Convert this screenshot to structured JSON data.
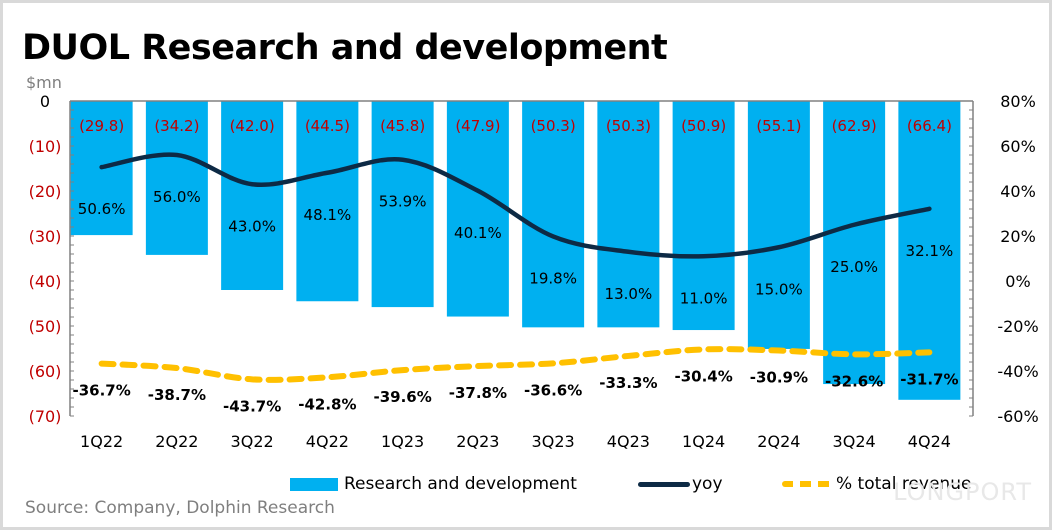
{
  "header": {
    "title": "DUOL Research and development",
    "unit": "$mn"
  },
  "legend": {
    "bar_label": "Research and development",
    "line_label": "yoy",
    "dash_label": "% total revenue"
  },
  "footer": {
    "source": "Source:  Company, Dolphin Research",
    "watermark": "LONGPORT"
  },
  "colors": {
    "bar": "#00b0f0",
    "yoy_line": "#0d2a45",
    "revenue_dash": "#ffc000",
    "bar_label": "#c00000",
    "left_axis_label": "#c00000"
  },
  "chart_data": {
    "type": "bar",
    "title": "DUOL Research and development",
    "xlabel": "",
    "ylabel": "$mn",
    "categories": [
      "1Q22",
      "2Q22",
      "3Q22",
      "4Q22",
      "1Q23",
      "2Q23",
      "3Q23",
      "4Q23",
      "1Q24",
      "2Q24",
      "3Q24",
      "4Q24"
    ],
    "series": [
      {
        "name": "Research and development",
        "type": "bar",
        "axis": "left",
        "values": [
          -29.8,
          -34.2,
          -42.0,
          -44.5,
          -45.8,
          -47.9,
          -50.3,
          -50.3,
          -50.9,
          -55.1,
          -62.9,
          -66.4
        ],
        "labels": [
          "(29.8)",
          "(34.2)",
          "(42.0)",
          "(44.5)",
          "(45.8)",
          "(47.9)",
          "(50.3)",
          "(50.3)",
          "(50.9)",
          "(55.1)",
          "(62.9)",
          "(66.4)"
        ]
      },
      {
        "name": "yoy",
        "type": "line",
        "axis": "right",
        "values": [
          50.6,
          56.0,
          43.0,
          48.1,
          53.9,
          40.1,
          19.8,
          13.0,
          11.0,
          15.0,
          25.0,
          32.1
        ],
        "labels": [
          "50.6%",
          "56.0%",
          "43.0%",
          "48.1%",
          "53.9%",
          "40.1%",
          "19.8%",
          "13.0%",
          "11.0%",
          "15.0%",
          "25.0%",
          "32.1%"
        ]
      },
      {
        "name": "% total revenue",
        "type": "line-dashed",
        "axis": "right",
        "values": [
          -36.7,
          -38.7,
          -43.7,
          -42.8,
          -39.6,
          -37.8,
          -36.6,
          -33.3,
          -30.4,
          -30.9,
          -32.6,
          -31.7
        ],
        "labels": [
          "-36.7%",
          "-38.7%",
          "-43.7%",
          "-42.8%",
          "-39.6%",
          "-37.8%",
          "-36.6%",
          "-33.3%",
          "-30.4%",
          "-30.9%",
          "-32.6%",
          "-31.7%"
        ]
      }
    ],
    "left_axis": {
      "range": [
        -70,
        0
      ],
      "ticks": [
        0,
        -10,
        -20,
        -30,
        -40,
        -50,
        -60,
        -70
      ],
      "tick_labels": [
        "0",
        "(10)",
        "(20)",
        "(30)",
        "(40)",
        "(50)",
        "(60)",
        "(70)"
      ]
    },
    "right_axis": {
      "range": [
        -60,
        80
      ],
      "ticks": [
        80,
        60,
        40,
        20,
        0,
        -20,
        -40,
        -60
      ],
      "tick_labels": [
        "80%",
        "60%",
        "40%",
        "20%",
        "0%",
        "-20%",
        "-40%",
        "-60%"
      ]
    },
    "grid": false,
    "legend_position": "bottom"
  }
}
